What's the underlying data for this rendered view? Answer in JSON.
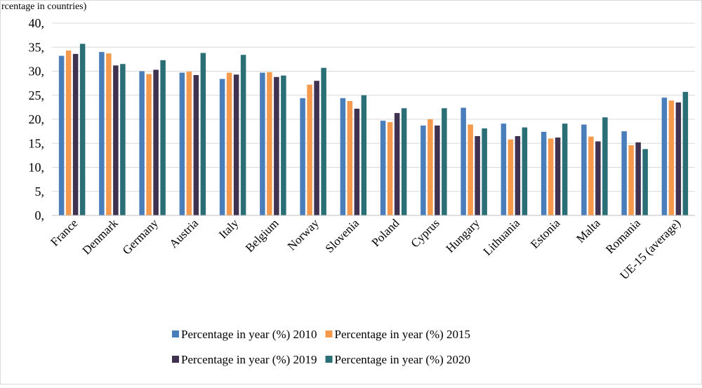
{
  "header": {
    "partial_title": "rcentage in countries)"
  },
  "chart_data": {
    "type": "bar",
    "title": "",
    "xlabel": "",
    "ylabel": "",
    "ylim": [
      0,
      40
    ],
    "yticks": [
      0,
      5,
      10,
      15,
      20,
      25,
      30,
      35,
      40
    ],
    "ytick_labels": [
      "0,",
      "5,",
      "10,",
      "15,",
      "20,",
      "25,",
      "30,",
      "35,",
      "40,"
    ],
    "grid": true,
    "legend_position": "bottom",
    "categories": [
      "France",
      "Denmark",
      "Germany",
      "Austria",
      "Italy",
      "Belgium",
      "Norway",
      "Slovenia",
      "Poland",
      "Cyprus",
      "Hungary",
      "Lithuania",
      "Estonia",
      "Malta",
      "Romania",
      "UE-15 (average)"
    ],
    "series": [
      {
        "name": "Percentage in year (%) 2010",
        "color": "#4a7ebb",
        "values": [
          33.2,
          34.0,
          30.0,
          29.7,
          28.4,
          29.7,
          24.4,
          24.4,
          19.7,
          18.7,
          22.4,
          19.1,
          17.4,
          18.9,
          17.5,
          24.5
        ]
      },
      {
        "name": "Percentage in year (%) 2015",
        "color": "#f59a4c",
        "values": [
          34.3,
          33.7,
          29.4,
          29.9,
          29.7,
          29.8,
          27.2,
          23.8,
          19.4,
          20.0,
          18.9,
          15.8,
          16.0,
          16.4,
          14.6,
          23.9
        ]
      },
      {
        "name": "Percentage in year (%) 2019",
        "color": "#3f3150",
        "values": [
          33.6,
          31.2,
          30.3,
          29.2,
          29.3,
          28.8,
          28.0,
          22.2,
          21.3,
          18.7,
          16.5,
          16.5,
          16.2,
          15.4,
          15.2,
          23.5
        ]
      },
      {
        "name": "Percentage in year (%) 2020",
        "color": "#2a6e76",
        "values": [
          35.7,
          31.5,
          32.3,
          33.8,
          33.4,
          29.1,
          30.7,
          25.0,
          22.3,
          22.3,
          18.1,
          18.3,
          19.1,
          20.4,
          13.8,
          25.7
        ]
      }
    ]
  }
}
